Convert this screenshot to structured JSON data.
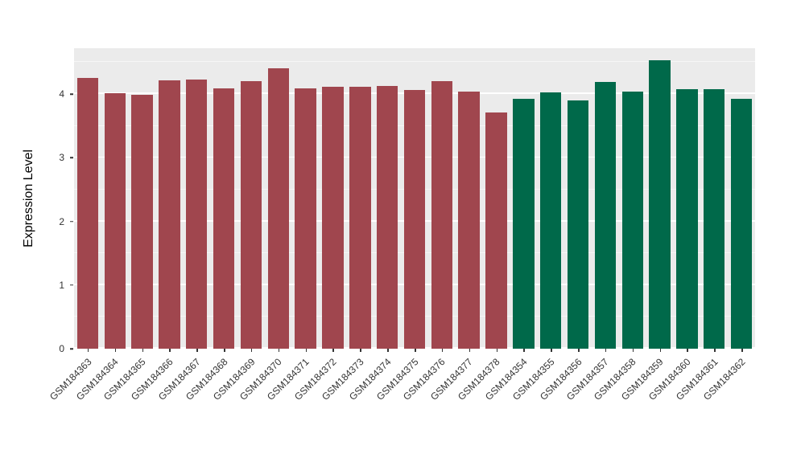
{
  "figure": {
    "background": "#FFFFFF",
    "panel_background": "#EBEBEB",
    "gridline_color": "#FFFFFF",
    "axis_text_color": "#333333"
  },
  "chart_data": {
    "type": "bar",
    "title": "",
    "xlabel": "",
    "ylabel": "Expression Level",
    "ylim": [
      0,
      4.72
    ],
    "yticks": [
      0,
      1,
      2,
      3,
      4
    ],
    "grid": true,
    "legend": "none",
    "categories": [
      "GSM184363",
      "GSM184364",
      "GSM184365",
      "GSM184366",
      "GSM184367",
      "GSM184368",
      "GSM184369",
      "GSM184370",
      "GSM184371",
      "GSM184372",
      "GSM184373",
      "GSM184374",
      "GSM184375",
      "GSM184376",
      "GSM184377",
      "GSM184378",
      "GSM184354",
      "GSM184355",
      "GSM184356",
      "GSM184357",
      "GSM184358",
      "GSM184359",
      "GSM184360",
      "GSM184361",
      "GSM184362"
    ],
    "values": [
      4.25,
      4.01,
      3.99,
      4.21,
      4.23,
      4.09,
      4.2,
      4.4,
      4.09,
      4.11,
      4.11,
      4.13,
      4.06,
      4.2,
      4.04,
      3.71,
      3.92,
      4.02,
      3.9,
      4.19,
      4.04,
      4.53,
      4.08,
      4.08,
      3.92
    ],
    "groups": [
      "group1",
      "group1",
      "group1",
      "group1",
      "group1",
      "group1",
      "group1",
      "group1",
      "group1",
      "group1",
      "group1",
      "group1",
      "group1",
      "group1",
      "group1",
      "group1",
      "group2",
      "group2",
      "group2",
      "group2",
      "group2",
      "group2",
      "group2",
      "group2",
      "group2"
    ],
    "group_colors": {
      "group1": "#A0464E",
      "group2": "#00694A"
    }
  }
}
